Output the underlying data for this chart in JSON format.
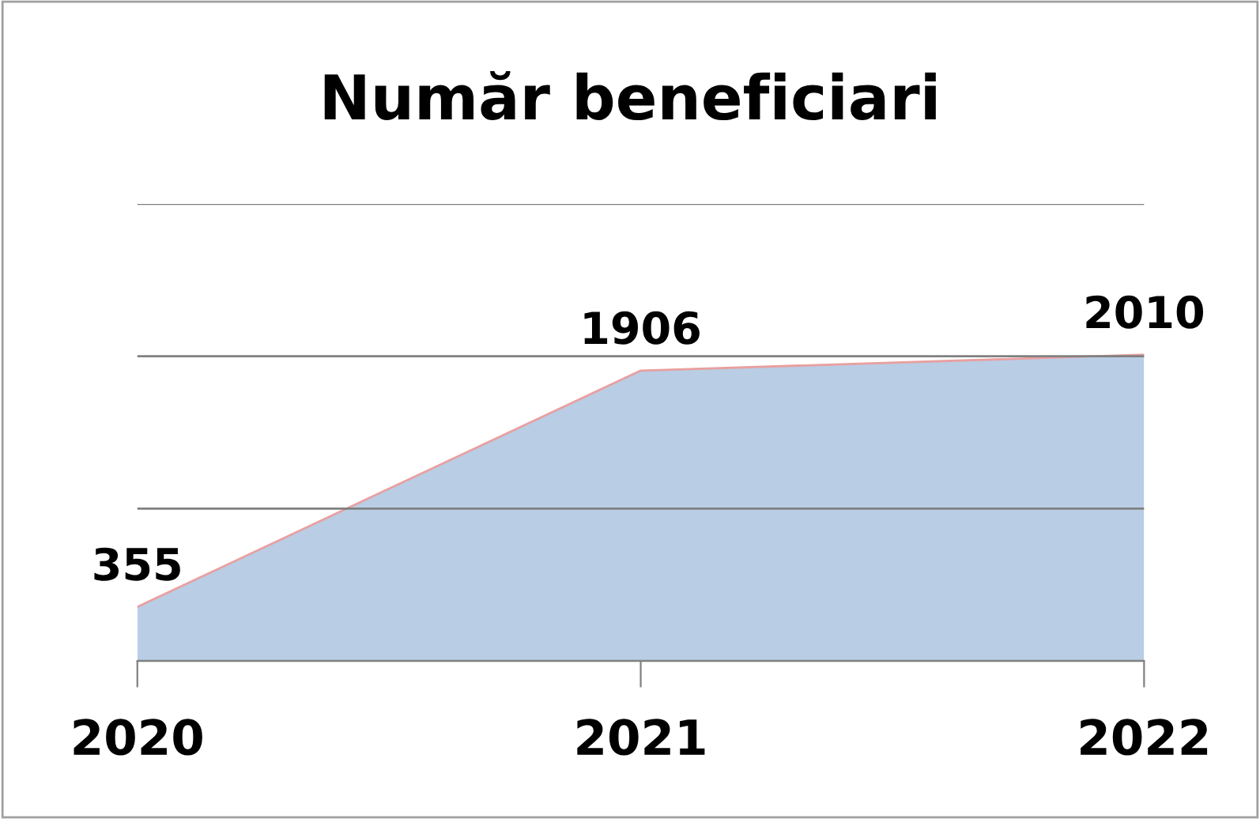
{
  "chart_data": {
    "type": "area",
    "title": "Număr beneficiari",
    "categories": [
      "2020",
      "2021",
      "2022"
    ],
    "series": [
      {
        "color": "#b9cde5",
        "values": [
          355,
          1906,
          2010
        ]
      }
    ],
    "ylim": [
      0,
      3000
    ],
    "yticks": [
      {
        "value": 0,
        "label": null
      },
      {
        "value": 1000,
        "label": null
      },
      {
        "value": 2000,
        "label": null
      },
      {
        "value": 3000,
        "label": null
      }
    ],
    "tick_labels": "x",
    "grid": "y",
    "data_labels": true,
    "legend": false
  }
}
